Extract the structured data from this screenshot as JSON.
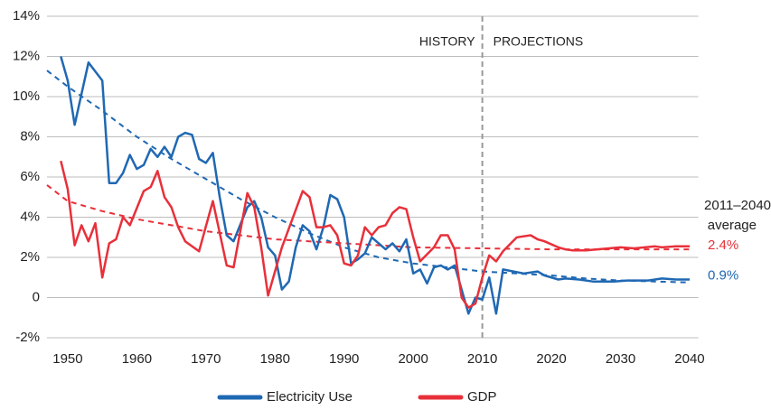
{
  "chart_data": {
    "type": "line",
    "ylim": [
      -2,
      14
    ],
    "yticks": [
      {
        "value": -2,
        "label": "-2%"
      },
      0,
      {
        "value": 2,
        "label": "2%"
      },
      {
        "value": 4,
        "label": "4%"
      },
      {
        "value": 6,
        "label": "6%"
      },
      {
        "value": 8,
        "label": "8%"
      },
      {
        "value": 10,
        "label": "10%"
      },
      {
        "value": 12,
        "label": "12%"
      },
      {
        "value": 14,
        "label": "14%"
      }
    ],
    "xlim": [
      1947,
      2041
    ],
    "xticks": [
      1950,
      1960,
      1970,
      1980,
      1990,
      2000,
      2010,
      2020,
      2030,
      2040
    ],
    "grid": true,
    "divider_x": 2010,
    "divider_labels": [
      "HISTORY",
      "PROJECTIONS"
    ],
    "average_title": [
      "2011–2040",
      "average"
    ],
    "series": [
      {
        "name": "Electricity Use",
        "color": "#1f68b3",
        "x": [
          1949,
          1950,
          1951,
          1953,
          1955,
          1956,
          1957,
          1958,
          1959,
          1960,
          1961,
          1962,
          1963,
          1964,
          1965,
          1966,
          1967,
          1968,
          1969,
          1970,
          1971,
          1972,
          1973,
          1974,
          1976,
          1977,
          1978,
          1979,
          1980,
          1981,
          1982,
          1983,
          1984,
          1985,
          1986,
          1987,
          1988,
          1989,
          1990,
          1991,
          1992,
          1993,
          1994,
          1995,
          1996,
          1997,
          1998,
          1999,
          2000,
          2001,
          2002,
          2003,
          2004,
          2005,
          2006,
          2007,
          2008,
          2009,
          2010,
          2011,
          2012,
          2013,
          2016,
          2018,
          2019,
          2021,
          2022,
          2024,
          2026,
          2029,
          2031,
          2034,
          2036,
          2038,
          2040
        ],
        "values": [
          12.0,
          10.8,
          8.6,
          11.7,
          10.8,
          5.7,
          5.7,
          6.2,
          7.1,
          6.4,
          6.6,
          7.4,
          7.0,
          7.5,
          7.0,
          8.0,
          8.2,
          8.1,
          6.9,
          6.7,
          7.2,
          5.0,
          3.1,
          2.8,
          4.5,
          4.8,
          4.0,
          2.5,
          2.1,
          0.4,
          0.8,
          2.5,
          3.6,
          3.3,
          2.4,
          3.5,
          5.1,
          4.9,
          4.0,
          1.7,
          1.9,
          2.2,
          3.0,
          2.7,
          2.4,
          2.7,
          2.3,
          2.9,
          1.2,
          1.4,
          0.7,
          1.5,
          1.6,
          1.4,
          1.6,
          0.4,
          -0.8,
          0.0,
          -0.1,
          1.0,
          -0.8,
          1.4,
          1.2,
          1.3,
          1.1,
          0.9,
          0.95,
          0.9,
          0.8,
          0.8,
          0.85,
          0.85,
          0.95,
          0.9,
          0.9
        ],
        "trend": {
          "x": [
            1947,
            1950,
            1955,
            1960,
            1965,
            1970,
            1975,
            1980,
            1985,
            1990,
            1995,
            2000,
            2005,
            2010,
            2015,
            2020,
            2025,
            2030,
            2035,
            2040
          ],
          "values": [
            11.3,
            10.5,
            9.3,
            8.0,
            6.9,
            5.9,
            4.9,
            4.0,
            3.2,
            2.5,
            2.0,
            1.7,
            1.5,
            1.3,
            1.2,
            1.1,
            0.95,
            0.85,
            0.8,
            0.75
          ]
        },
        "average": {
          "value": 0.9,
          "label": "0.9%"
        }
      },
      {
        "name": "GDP",
        "color": "#e8303a",
        "x": [
          1949,
          1950,
          1951,
          1952,
          1953,
          1954,
          1955,
          1956,
          1957,
          1958,
          1959,
          1961,
          1962,
          1963,
          1964,
          1965,
          1966,
          1967,
          1969,
          1971,
          1973,
          1974,
          1976,
          1977,
          1978,
          1979,
          1981,
          1984,
          1985,
          1986,
          1987,
          1988,
          1989,
          1990,
          1991,
          1992,
          1993,
          1994,
          1995,
          1996,
          1997,
          1998,
          1999,
          2000,
          2001,
          2003,
          2004,
          2005,
          2006,
          2007,
          2008,
          2009,
          2010,
          2011,
          2012,
          2013,
          2015,
          2017,
          2018,
          2019,
          2021,
          2022,
          2023,
          2025,
          2030,
          2032,
          2035,
          2036,
          2038,
          2039,
          2040
        ],
        "values": [
          6.8,
          5.4,
          2.6,
          3.6,
          2.8,
          3.7,
          1.0,
          2.7,
          2.9,
          4.0,
          3.6,
          5.3,
          5.5,
          6.3,
          5.0,
          4.5,
          3.5,
          2.8,
          2.3,
          4.8,
          1.6,
          1.5,
          5.2,
          4.5,
          2.5,
          0.1,
          2.5,
          5.3,
          5.0,
          3.5,
          3.5,
          3.6,
          3.1,
          1.7,
          1.6,
          2.1,
          3.5,
          3.1,
          3.5,
          3.6,
          4.2,
          4.5,
          4.4,
          3.0,
          1.8,
          2.5,
          3.1,
          3.1,
          2.4,
          0.0,
          -0.5,
          -0.3,
          1.0,
          2.1,
          1.8,
          2.3,
          3.0,
          3.1,
          2.9,
          2.8,
          2.5,
          2.4,
          2.35,
          2.35,
          2.5,
          2.45,
          2.55,
          2.5,
          2.55,
          2.55,
          2.55
        ],
        "trend": {
          "x": [
            1947,
            1950,
            1955,
            1960,
            1965,
            1970,
            1975,
            1980,
            1985,
            1990,
            1995,
            2000,
            2010,
            2020,
            2030,
            2040
          ],
          "values": [
            5.6,
            4.8,
            4.3,
            3.9,
            3.6,
            3.3,
            3.1,
            2.9,
            2.8,
            2.7,
            2.6,
            2.5,
            2.45,
            2.4,
            2.4,
            2.4
          ]
        },
        "average": {
          "value": 2.4,
          "label": "2.4%"
        }
      }
    ]
  }
}
